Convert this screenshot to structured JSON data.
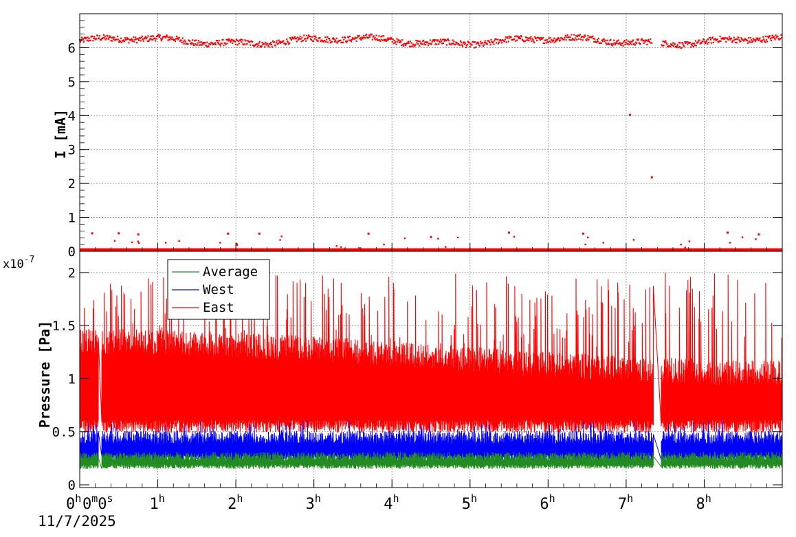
{
  "chart_data": [
    {
      "type": "scatter",
      "ylabel": "I [mA]",
      "ylim": [
        0,
        7
      ],
      "yticks": [
        "0",
        "1",
        "2",
        "3",
        "4",
        "5",
        "6"
      ],
      "grid": true,
      "series": [
        {
          "color": "#ff0000",
          "points_high_band": {
            "approx_value": 6.2,
            "spread": [
              5.9,
              6.5
            ]
          },
          "points_low_band": {
            "approx_value": 0.05
          },
          "outliers": [
            {
              "t_h": 7.05,
              "y": 4.02
            },
            {
              "t_h": 7.33,
              "y": 2.18
            },
            {
              "t_h": 0.16,
              "y": 0.53
            },
            {
              "t_h": 0.5,
              "y": 0.53
            },
            {
              "t_h": 0.75,
              "y": 0.5
            },
            {
              "t_h": 1.9,
              "y": 0.52
            },
            {
              "t_h": 2.3,
              "y": 0.52
            },
            {
              "t_h": 3.7,
              "y": 0.52
            },
            {
              "t_h": 4.5,
              "y": 0.42
            },
            {
              "t_h": 5.5,
              "y": 0.55
            },
            {
              "t_h": 6.45,
              "y": 0.52
            },
            {
              "t_h": 8.3,
              "y": 0.55
            },
            {
              "t_h": 8.7,
              "y": 0.5
            }
          ]
        }
      ]
    },
    {
      "type": "line",
      "ylabel": "Pressure [Pa]",
      "y_exponent": "x10",
      "y_exponent_power": "-7",
      "ylim": [
        0,
        2.2
      ],
      "yticks": [
        "0",
        "0.5",
        "1",
        "1.5",
        "2"
      ],
      "grid": true,
      "legend_position": "top-left",
      "series": [
        {
          "name": "Average",
          "color": "#228b22",
          "approx_base": 0.17,
          "approx_top": 0.27
        },
        {
          "name": "West",
          "color": "#0000ff",
          "approx_base": 0.25,
          "approx_top": 0.45
        },
        {
          "name": "East",
          "color": "#ff0000",
          "approx_base": 0.55,
          "approx_top": 1.2,
          "spike_max": 2.0
        }
      ],
      "gaps_t_h": [
        [
          0.24,
          0.28
        ],
        [
          7.35,
          7.45
        ]
      ]
    }
  ],
  "x_axis": {
    "range_h": [
      0,
      9
    ],
    "ticks": [
      {
        "t_h": 0,
        "value": "0",
        "unit": "h",
        "extra": "0m0s"
      },
      {
        "t_h": 1,
        "value": "1",
        "unit": "h"
      },
      {
        "t_h": 2,
        "value": "2",
        "unit": "h"
      },
      {
        "t_h": 3,
        "value": "3",
        "unit": "h"
      },
      {
        "t_h": 4,
        "value": "4",
        "unit": "h"
      },
      {
        "t_h": 5,
        "value": "5",
        "unit": "h"
      },
      {
        "t_h": 6,
        "value": "6",
        "unit": "h"
      },
      {
        "t_h": 7,
        "value": "7",
        "unit": "h"
      },
      {
        "t_h": 8,
        "value": "8",
        "unit": "h"
      }
    ],
    "date_label": "11/7/2025"
  }
}
